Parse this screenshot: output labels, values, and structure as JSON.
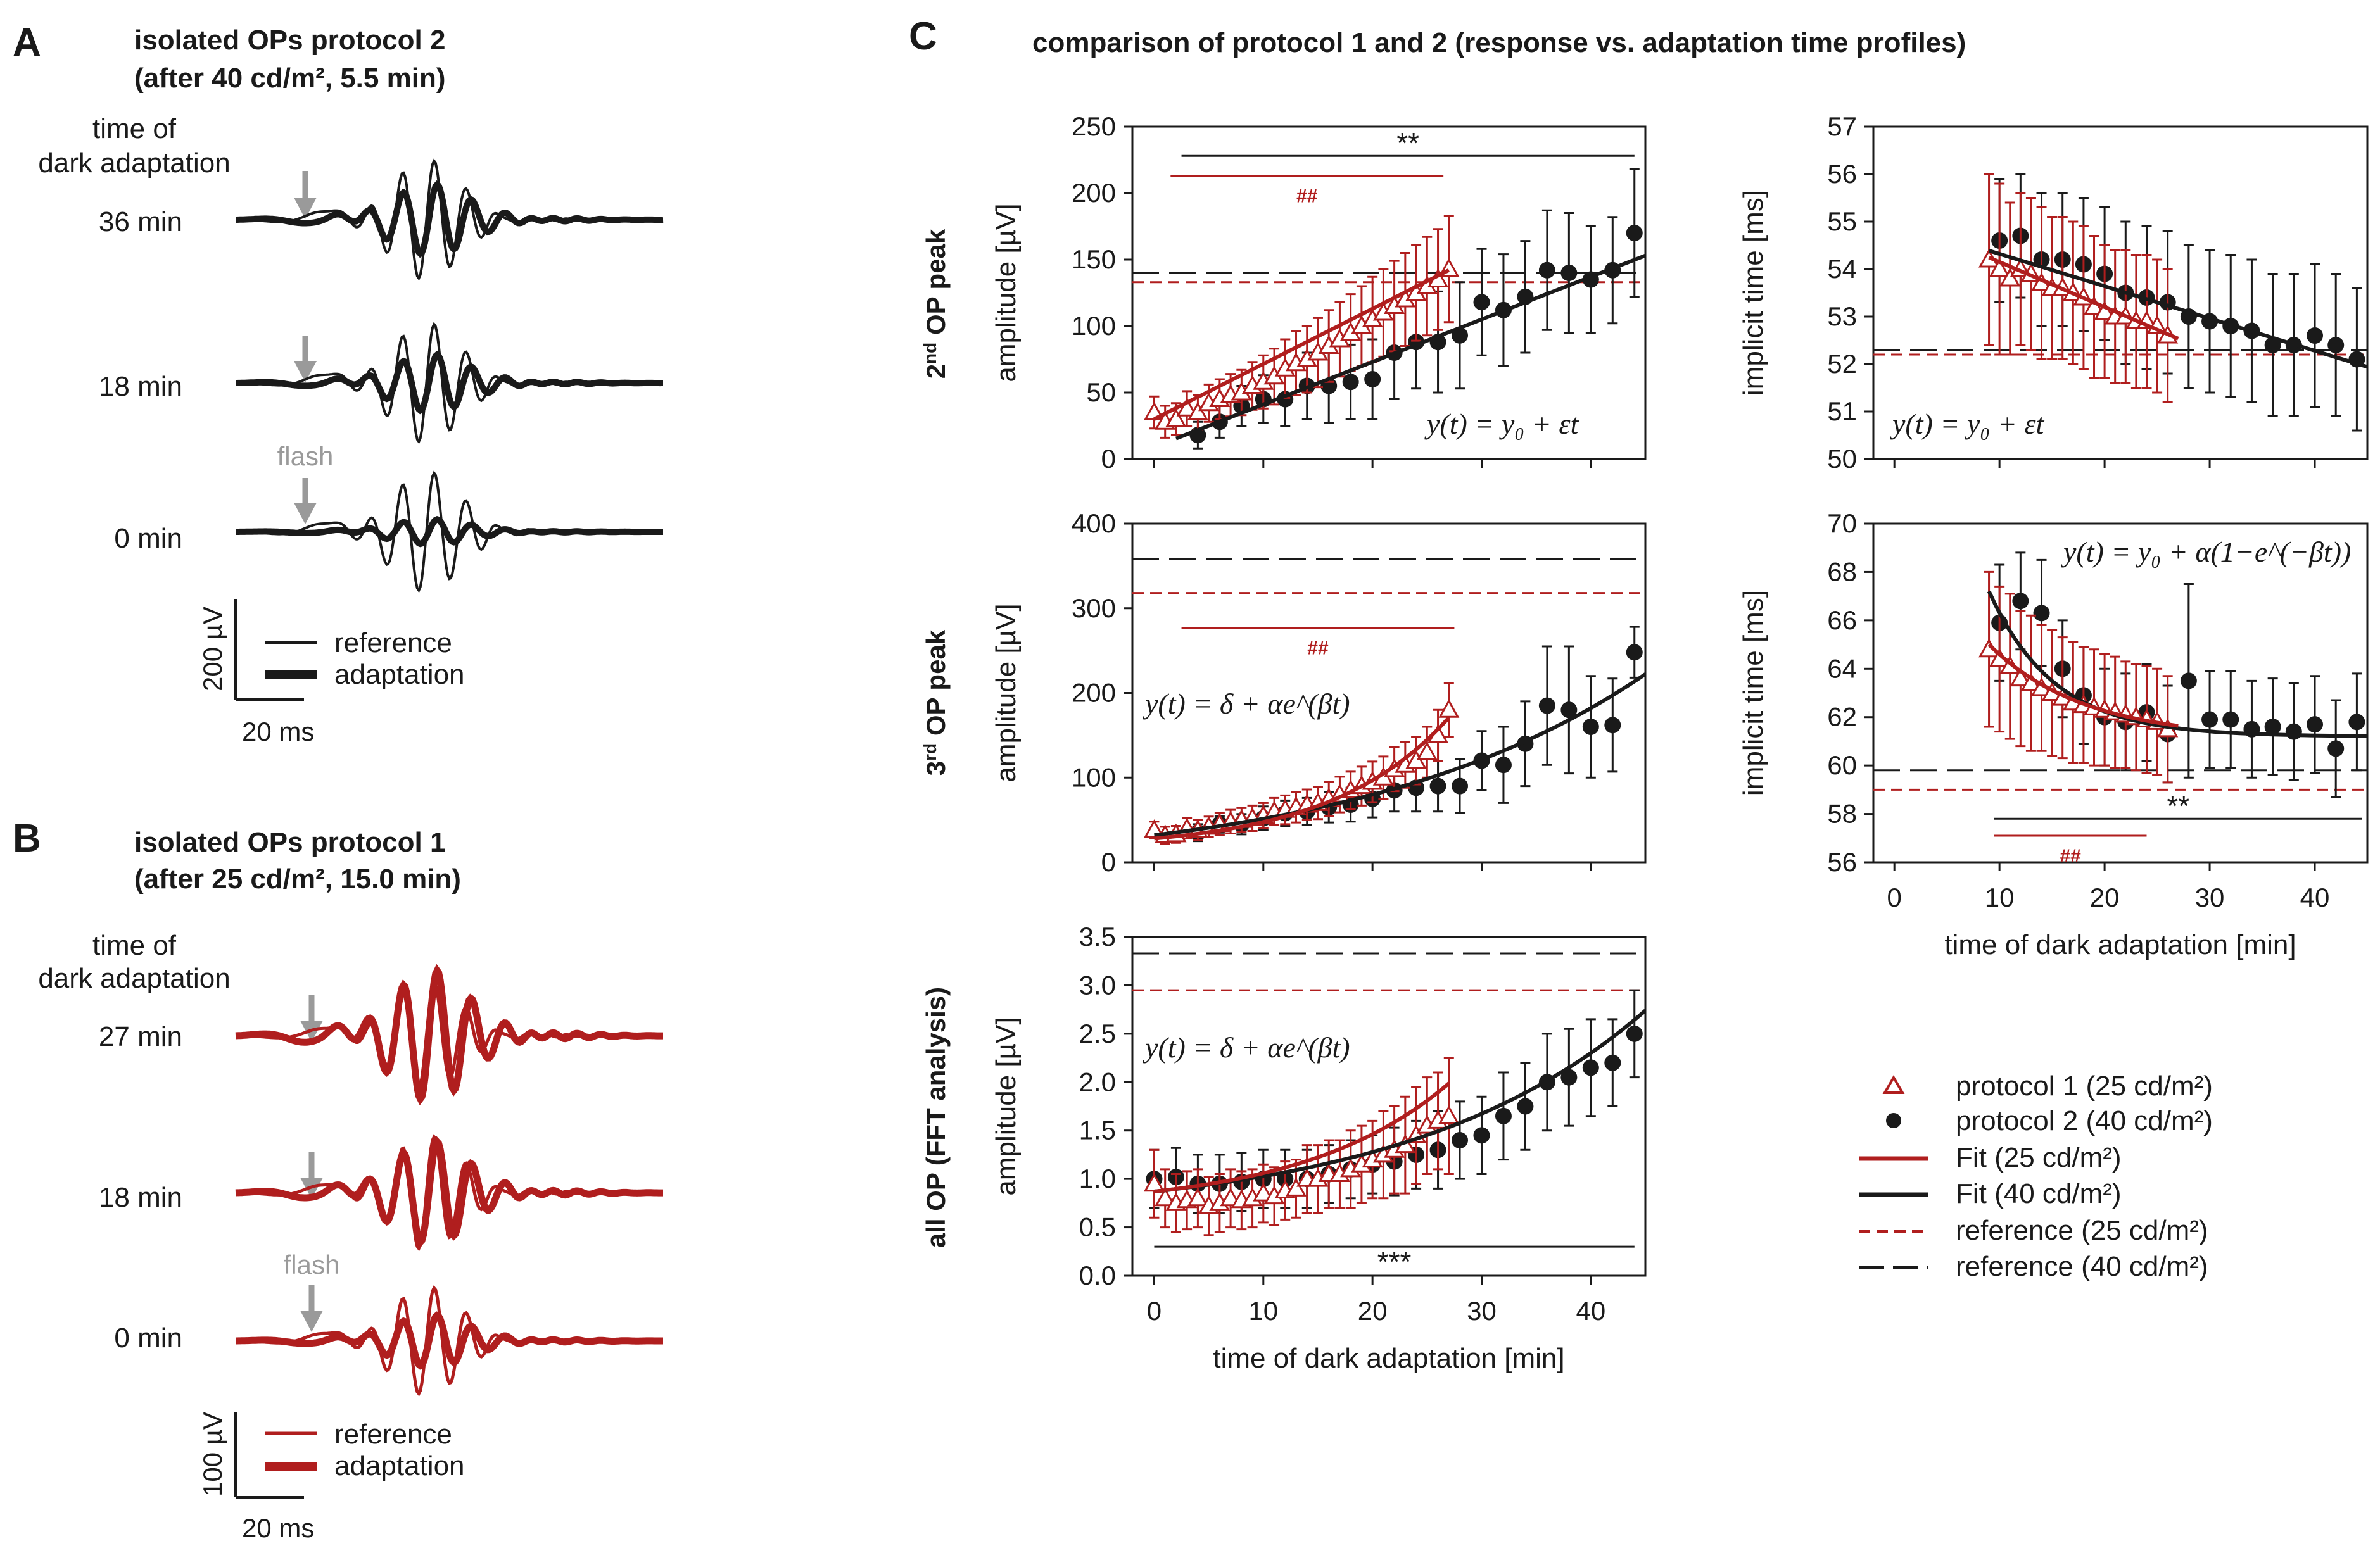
{
  "colors": {
    "red": "#b01e1e",
    "black": "#1a1a1a",
    "grey": "#9a9a9a"
  },
  "panels": {
    "A": {
      "letter": "A",
      "title1": "isolated OPs protocol 2",
      "title2": "(after 40 cd/m², 5.5 min)",
      "time_header1": "time of",
      "time_header2": "dark adaptation",
      "rows": [
        "36 min",
        "18 min",
        "0 min"
      ],
      "flash": "flash",
      "scale_v": "200 µV",
      "scale_h": "20 ms",
      "legend_ref": "reference",
      "legend_adapt": "adaptation"
    },
    "B": {
      "letter": "B",
      "title1": "isolated OPs protocol 1",
      "title2": "(after 25 cd/m², 15.0 min)",
      "time_header1": "time of",
      "time_header2": "dark adaptation",
      "rows": [
        "27 min",
        "18 min",
        "0 min"
      ],
      "flash": "flash",
      "scale_v": "100 µV",
      "scale_h": "20 ms",
      "legend_ref": "reference",
      "legend_adapt": "adaptation"
    },
    "C": {
      "letter": "C",
      "title": "comparison of protocol 1 and 2 (response vs. adaptation time profiles)"
    }
  },
  "row_labels": {
    "r1": {
      "sup_prefix": "2",
      "sup": "nd",
      "rest": " OP peak"
    },
    "r2": {
      "sup_prefix": "3",
      "sup": "rd",
      "rest": " OP peak"
    },
    "r3": {
      "text": "all OP (FFT analysis)"
    }
  },
  "chart_data": [
    {
      "type": "scatter",
      "id": "amp2",
      "ylabel": "amplitude [µV]",
      "xlabel": "",
      "xlim": [
        -2,
        45
      ],
      "ylim": [
        0,
        250
      ],
      "xticks": [
        0,
        10,
        20,
        30,
        40
      ],
      "yticks": [
        0,
        50,
        100,
        150,
        200,
        250
      ],
      "ytick_labels": [
        "0",
        "50",
        "100",
        "150",
        "200",
        "250"
      ],
      "formula": "y(t) = y₀ + εt",
      "ref_p1": 133,
      "ref_p2": 140,
      "series": [
        {
          "name": "protocol 1 (25 cd/m²)",
          "x": [
            0,
            1,
            2,
            3,
            4,
            5,
            6,
            7,
            8,
            9,
            10,
            11,
            12,
            13,
            14,
            15,
            16,
            17,
            18,
            19,
            20,
            21,
            22,
            23,
            24,
            25,
            26,
            27
          ],
          "y": [
            35,
            28,
            30,
            38,
            35,
            42,
            45,
            48,
            50,
            55,
            58,
            62,
            68,
            72,
            75,
            80,
            85,
            90,
            95,
            100,
            105,
            110,
            115,
            120,
            125,
            130,
            135,
            143
          ],
          "err": [
            12,
            12,
            12,
            13,
            13,
            14,
            15,
            16,
            17,
            18,
            20,
            21,
            22,
            24,
            25,
            26,
            27,
            28,
            29,
            30,
            32,
            33,
            34,
            35,
            36,
            37,
            38,
            40
          ]
        },
        {
          "name": "protocol 2 (40 cd/m²)",
          "x": [
            4,
            6,
            8,
            10,
            12,
            14,
            16,
            18,
            20,
            22,
            24,
            26,
            28,
            30,
            32,
            34,
            36,
            38,
            40,
            42,
            44
          ],
          "y": [
            18,
            28,
            40,
            45,
            45,
            55,
            55,
            58,
            60,
            80,
            88,
            88,
            93,
            118,
            112,
            122,
            142,
            140,
            135,
            142,
            170
          ],
          "err": [
            10,
            12,
            15,
            18,
            20,
            25,
            28,
            28,
            30,
            35,
            35,
            38,
            40,
            40,
            42,
            42,
            45,
            45,
            40,
            40,
            48
          ]
        }
      ],
      "fit_p1": {
        "x0": 0,
        "x1": 27,
        "y0": 30,
        "slope": 4.15
      },
      "fit_p2": {
        "x0": 2,
        "x1": 45,
        "y0": 9,
        "slope": 3.2
      },
      "sig": [
        {
          "x0": 2.5,
          "x1": 44,
          "y": 228,
          "label": "**",
          "color": "black"
        },
        {
          "x0": 1.5,
          "x1": 26.5,
          "y": 213,
          "label": "##",
          "color": "red"
        }
      ]
    },
    {
      "type": "scatter",
      "id": "imp2",
      "ylabel": "implicit time [ms]",
      "xlabel": "",
      "xlim": [
        -2,
        45
      ],
      "ylim": [
        50,
        57
      ],
      "xticks": [
        0,
        10,
        20,
        30,
        40
      ],
      "yticks": [
        50,
        51,
        52,
        53,
        54,
        55,
        56,
        57
      ],
      "ytick_labels": [
        "50",
        "51",
        "52",
        "53",
        "54",
        "55",
        "56",
        "57"
      ],
      "formula": "y(t) = y₀ + εt",
      "ref_p1": 52.2,
      "ref_p2": 52.3,
      "series": [
        {
          "name": "protocol 1 (25 cd/m²)",
          "x": [
            9,
            10,
            11,
            12,
            13,
            14,
            15,
            16,
            17,
            18,
            19,
            20,
            21,
            22,
            23,
            24,
            25,
            26
          ],
          "y": [
            54.2,
            54.0,
            53.8,
            54.0,
            53.9,
            53.7,
            53.6,
            53.6,
            53.5,
            53.4,
            53.2,
            53.1,
            53.0,
            53.0,
            52.9,
            52.9,
            52.8,
            52.6
          ],
          "err": [
            1.8,
            1.8,
            1.6,
            1.6,
            1.6,
            1.6,
            1.5,
            1.5,
            1.5,
            1.5,
            1.5,
            1.4,
            1.4,
            1.4,
            1.4,
            1.4,
            1.4,
            1.4
          ]
        },
        {
          "name": "protocol 2 (40 cd/m²)",
          "x": [
            10,
            12,
            14,
            16,
            18,
            20,
            22,
            24,
            26,
            28,
            30,
            32,
            34,
            36,
            38,
            40,
            42,
            44
          ],
          "y": [
            54.6,
            54.7,
            54.2,
            54.2,
            54.1,
            53.9,
            53.5,
            53.4,
            53.3,
            53.0,
            52.9,
            52.8,
            52.7,
            52.4,
            52.4,
            52.6,
            52.4,
            52.1
          ],
          "err": [
            1.3,
            1.3,
            1.4,
            1.4,
            1.4,
            1.4,
            1.5,
            1.5,
            1.5,
            1.5,
            1.5,
            1.5,
            1.5,
            1.5,
            1.5,
            1.5,
            1.5,
            1.5
          ]
        }
      ],
      "fit_p1": {
        "x0": 9,
        "x1": 27,
        "y0": 55.1,
        "slope": -0.095
      },
      "fit_p2": {
        "x0": 9,
        "x1": 45,
        "y0": 55.0,
        "slope": -0.068
      },
      "sig": []
    },
    {
      "type": "scatter",
      "id": "amp3",
      "ylabel": "amplitude [µV]",
      "xlabel": "",
      "xlim": [
        -2,
        45
      ],
      "ylim": [
        0,
        400
      ],
      "xticks": [
        0,
        10,
        20,
        30,
        40
      ],
      "yticks": [
        0,
        100,
        200,
        300,
        400
      ],
      "ytick_labels": [
        "0",
        "100",
        "200",
        "300",
        "400"
      ],
      "formula": "y(t) = δ + αe^(βt)",
      "ref_p1": 318,
      "ref_p2": 358,
      "series": [
        {
          "name": "protocol 1 (25 cd/m²)",
          "x": [
            0,
            1,
            2,
            3,
            4,
            5,
            6,
            7,
            8,
            9,
            10,
            11,
            12,
            13,
            14,
            15,
            16,
            17,
            18,
            19,
            20,
            21,
            22,
            23,
            24,
            25,
            26,
            27
          ],
          "y": [
            38,
            32,
            33,
            40,
            38,
            42,
            45,
            48,
            50,
            52,
            55,
            60,
            62,
            65,
            68,
            70,
            75,
            80,
            85,
            90,
            95,
            100,
            110,
            115,
            120,
            130,
            150,
            180
          ],
          "err": [
            10,
            10,
            10,
            12,
            12,
            12,
            13,
            14,
            14,
            15,
            15,
            16,
            17,
            18,
            18,
            19,
            20,
            21,
            22,
            23,
            24,
            25,
            26,
            27,
            28,
            30,
            30,
            32
          ]
        },
        {
          "name": "protocol 2 (40 cd/m²)",
          "x": [
            4,
            6,
            8,
            10,
            12,
            14,
            16,
            18,
            20,
            22,
            24,
            26,
            28,
            30,
            32,
            34,
            36,
            38,
            40,
            42,
            44
          ],
          "y": [
            35,
            45,
            45,
            52,
            58,
            60,
            65,
            68,
            75,
            85,
            88,
            90,
            90,
            120,
            115,
            140,
            185,
            180,
            160,
            162,
            248
          ],
          "err": [
            10,
            10,
            12,
            14,
            15,
            16,
            18,
            20,
            22,
            25,
            28,
            30,
            32,
            35,
            45,
            50,
            70,
            75,
            60,
            55,
            30
          ]
        }
      ],
      "fit_p1": {
        "delta": 15,
        "alpha": 13,
        "beta": 0.092,
        "x0": 0,
        "x1": 27
      },
      "fit_p2": {
        "delta": -10,
        "alpha": 42,
        "beta": 0.038,
        "x0": 0,
        "x1": 45
      },
      "sig": [
        {
          "x0": 2.5,
          "x1": 27.5,
          "y": 277,
          "label": "##",
          "color": "red"
        }
      ]
    },
    {
      "type": "scatter",
      "id": "imp3",
      "ylabel": "implicit time [ms]",
      "xlabel": "time of dark adaptation [min]",
      "xlim": [
        -2,
        45
      ],
      "ylim": [
        56,
        70
      ],
      "xticks": [
        0,
        10,
        20,
        30,
        40
      ],
      "yticks": [
        56,
        58,
        60,
        62,
        64,
        66,
        68,
        70
      ],
      "ytick_labels": [
        "56",
        "58",
        "60",
        "62",
        "64",
        "66",
        "68",
        "70"
      ],
      "formula": "y(t) = y₀ + α(1−e^(−βt))",
      "ref_p1": 59.0,
      "ref_p2": 59.8,
      "series": [
        {
          "name": "protocol 1 (25 cd/m²)",
          "x": [
            9,
            10,
            11,
            12,
            13,
            14,
            15,
            16,
            17,
            18,
            19,
            20,
            21,
            22,
            23,
            24,
            25,
            26
          ],
          "y": [
            64.8,
            64.4,
            64.1,
            63.6,
            63.4,
            63.2,
            63.0,
            62.8,
            62.6,
            62.5,
            62.4,
            62.3,
            62.2,
            62.1,
            62.0,
            61.9,
            61.8,
            61.5
          ],
          "err": [
            3.2,
            3.0,
            3.0,
            2.8,
            2.8,
            2.6,
            2.6,
            2.5,
            2.5,
            2.4,
            2.4,
            2.3,
            2.3,
            2.2,
            2.2,
            2.2,
            2.2,
            2.2
          ]
        },
        {
          "name": "protocol 2 (40 cd/m²)",
          "x": [
            10,
            12,
            14,
            16,
            18,
            20,
            22,
            24,
            26,
            28,
            30,
            32,
            34,
            36,
            38,
            40,
            42,
            44
          ],
          "y": [
            65.9,
            66.8,
            66.3,
            64.0,
            62.9,
            62.0,
            61.8,
            62.2,
            61.3,
            63.5,
            61.9,
            61.9,
            61.5,
            61.6,
            61.4,
            61.7,
            60.7,
            61.8
          ],
          "err": [
            2.4,
            2.0,
            2.2,
            2.0,
            2.0,
            2.0,
            2.0,
            2.0,
            2.0,
            4.0,
            2.0,
            2.0,
            2.0,
            2.0,
            2.0,
            2.0,
            2.0,
            2.0
          ]
        }
      ],
      "fit_p1": {
        "y0": 61.1,
        "A": 3.9,
        "k": 0.11,
        "x0": 9,
        "x1": 27
      },
      "fit_p2": {
        "y0": 61.2,
        "A": 6.0,
        "k": 0.16,
        "x0": 9,
        "x1": 45
      },
      "sig": [
        {
          "x0": 9.5,
          "x1": 44.5,
          "y": 57.8,
          "label": "**",
          "color": "black"
        },
        {
          "x0": 9.5,
          "x1": 24,
          "y": 57.1,
          "label": "##",
          "color": "red"
        }
      ]
    },
    {
      "type": "scatter",
      "id": "ampall",
      "ylabel": "amplitude [µV]",
      "xlabel": "time of dark adaptation [min]",
      "xlim": [
        -2,
        45
      ],
      "ylim": [
        0,
        3.5
      ],
      "xticks": [
        0,
        10,
        20,
        30,
        40
      ],
      "yticks": [
        0,
        0.5,
        1,
        1.5,
        2,
        2.5,
        3,
        3.5
      ],
      "ytick_labels": [
        "0.0",
        "0.5",
        "1.0",
        "1.5",
        "2.0",
        "2.5",
        "3.0",
        "3.5"
      ],
      "formula": "y(t) = δ + αe^(βt)",
      "ref_p1": 2.95,
      "ref_p2": 3.33,
      "series": [
        {
          "name": "protocol 1 (25 cd/m²)",
          "x": [
            0,
            1,
            2,
            3,
            4,
            5,
            6,
            7,
            8,
            9,
            10,
            11,
            12,
            13,
            14,
            15,
            16,
            17,
            18,
            19,
            20,
            21,
            22,
            23,
            24,
            25,
            26,
            27
          ],
          "y": [
            0.95,
            0.8,
            0.75,
            0.78,
            0.8,
            0.72,
            0.75,
            0.8,
            0.78,
            0.8,
            0.85,
            0.82,
            0.88,
            0.9,
            1.0,
            1.0,
            1.05,
            1.05,
            1.1,
            1.15,
            1.2,
            1.25,
            1.3,
            1.35,
            1.45,
            1.55,
            1.6,
            1.65
          ],
          "err": [
            0.35,
            0.3,
            0.3,
            0.3,
            0.3,
            0.3,
            0.3,
            0.3,
            0.3,
            0.3,
            0.3,
            0.3,
            0.3,
            0.3,
            0.35,
            0.35,
            0.35,
            0.35,
            0.4,
            0.4,
            0.4,
            0.45,
            0.45,
            0.5,
            0.5,
            0.5,
            0.5,
            0.6
          ]
        },
        {
          "name": "protocol 2 (40 cd/m²)",
          "x": [
            0,
            2,
            4,
            6,
            8,
            10,
            12,
            14,
            16,
            18,
            20,
            22,
            24,
            26,
            28,
            30,
            32,
            34,
            36,
            38,
            40,
            42,
            44
          ],
          "y": [
            1.0,
            1.02,
            0.95,
            0.95,
            0.97,
            1.0,
            1.0,
            1.0,
            1.05,
            1.1,
            1.15,
            1.18,
            1.25,
            1.3,
            1.4,
            1.45,
            1.65,
            1.75,
            2.0,
            2.05,
            2.15,
            2.2,
            2.5
          ],
          "err": [
            0.3,
            0.3,
            0.3,
            0.3,
            0.3,
            0.3,
            0.3,
            0.3,
            0.3,
            0.3,
            0.3,
            0.35,
            0.35,
            0.4,
            0.4,
            0.4,
            0.45,
            0.45,
            0.5,
            0.5,
            0.5,
            0.45,
            0.45
          ]
        }
      ],
      "fit_p1": {
        "delta": 0.7,
        "alpha": 0.17,
        "beta": 0.075,
        "x0": 0,
        "x1": 27
      },
      "fit_p2": {
        "delta": 0.6,
        "alpha": 0.27,
        "beta": 0.046,
        "x0": 0,
        "x1": 45
      },
      "sig": [
        {
          "x0": 0,
          "x1": 44,
          "y": 0.3,
          "label": "***",
          "color": "black"
        }
      ]
    }
  ],
  "legend": {
    "p1": "protocol 1 (25 cd/m²)",
    "p2": "protocol 2 (40 cd/m²)",
    "fit1": "Fit (25 cd/m²)",
    "fit2": "Fit (40 cd/m²)",
    "ref1": "reference (25 cd/m²)",
    "ref2": "reference (40 cd/m²)"
  }
}
